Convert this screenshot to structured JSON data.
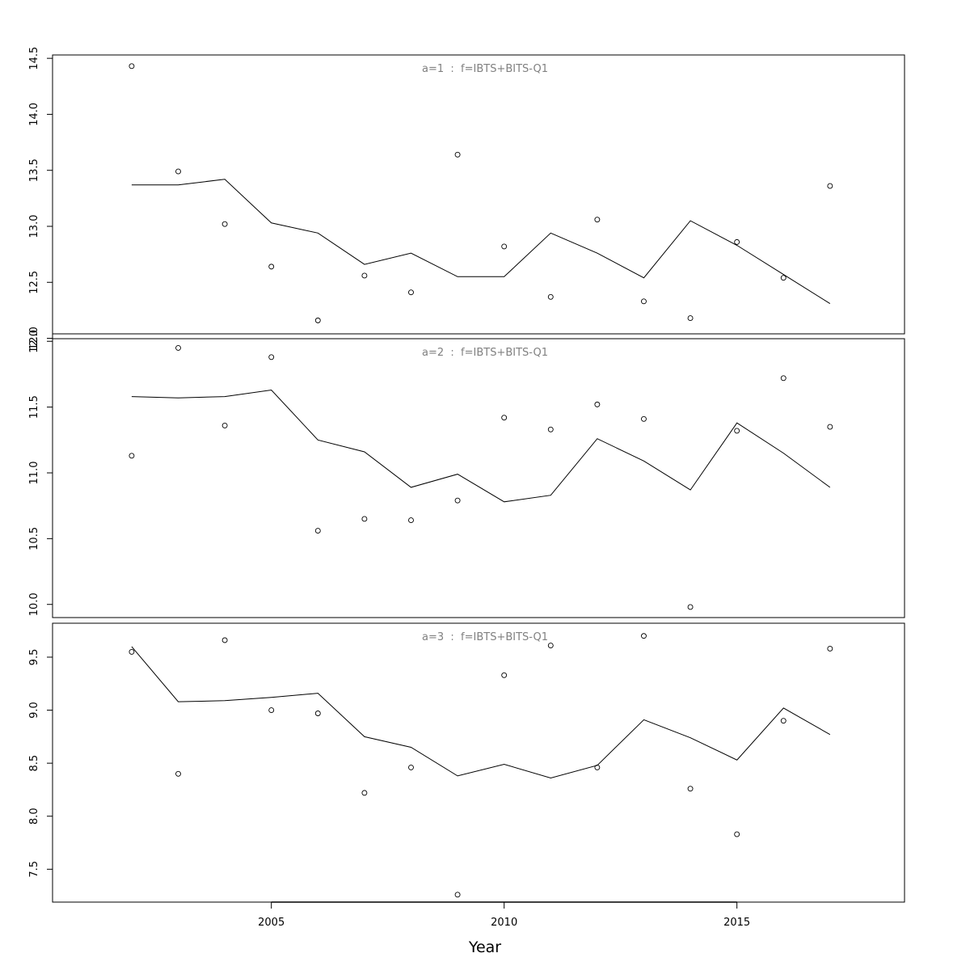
{
  "chart_data": {
    "type": "scatter",
    "xlabel": "Year",
    "x_ticks": [
      2005,
      2010,
      2015
    ],
    "xlim": [
      2000.3,
      2018.6
    ],
    "years": [
      2002,
      2003,
      2004,
      2005,
      2006,
      2007,
      2008,
      2009,
      2010,
      2011,
      2012,
      2013,
      2014,
      2015,
      2016,
      2017
    ],
    "panels": [
      {
        "title": "a=1  :  f=IBTS+BITS-Q1",
        "ylim": [
          12.04,
          14.53
        ],
        "y_ticks": [
          12.0,
          12.5,
          13.0,
          13.5,
          14.0,
          14.5
        ],
        "observed": [
          14.43,
          13.49,
          13.02,
          12.64,
          12.16,
          12.56,
          12.41,
          13.64,
          12.82,
          12.37,
          13.06,
          12.33,
          12.18,
          12.86,
          12.54,
          13.36
        ],
        "fitted": [
          13.37,
          13.37,
          13.42,
          13.03,
          12.94,
          12.66,
          12.76,
          12.55,
          12.55,
          12.94,
          12.76,
          12.54,
          13.05,
          12.83,
          12.57,
          12.31
        ]
      },
      {
        "title": "a=2  :  f=IBTS+BITS-Q1",
        "ylim": [
          9.9,
          12.02
        ],
        "y_ticks": [
          10.0,
          10.5,
          11.0,
          11.5,
          12.0
        ],
        "observed": [
          11.13,
          11.95,
          11.36,
          11.88,
          10.56,
          10.65,
          10.64,
          10.79,
          11.42,
          11.33,
          11.52,
          11.41,
          9.98,
          11.32,
          11.72,
          11.35
        ],
        "fitted": [
          11.58,
          11.57,
          11.58,
          11.63,
          11.25,
          11.16,
          10.89,
          10.99,
          10.78,
          10.83,
          11.26,
          11.09,
          10.87,
          11.38,
          11.15,
          10.89
        ]
      },
      {
        "title": "a=3  :  f=IBTS+BITS-Q1",
        "ylim": [
          7.19,
          9.82
        ],
        "y_ticks": [
          7.5,
          8.0,
          8.5,
          9.0,
          9.5
        ],
        "observed": [
          9.55,
          8.4,
          9.66,
          9.0,
          8.97,
          8.22,
          8.46,
          7.26,
          9.33,
          9.61,
          8.46,
          9.7,
          8.26,
          7.83,
          8.9,
          9.58
        ],
        "fitted": [
          9.6,
          9.08,
          9.09,
          9.12,
          9.16,
          8.75,
          8.65,
          8.38,
          8.49,
          8.36,
          8.48,
          8.91,
          8.74,
          8.53,
          9.02,
          8.77
        ]
      }
    ]
  }
}
